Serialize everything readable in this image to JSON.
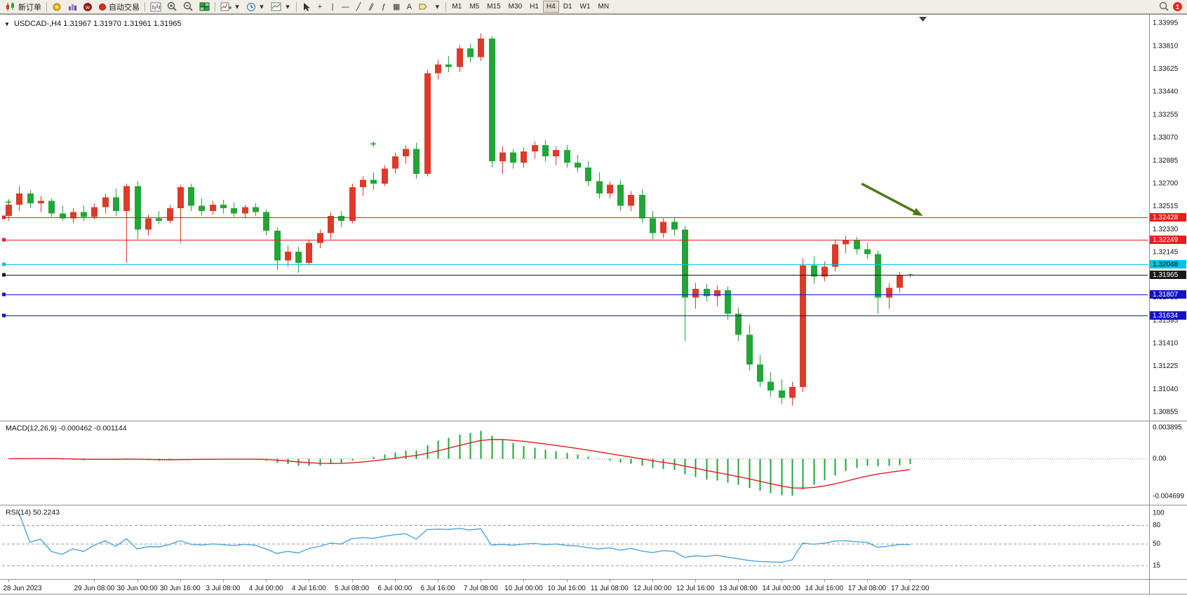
{
  "window": {
    "title_symbol": "USDCAD-,H4",
    "quote": "1.31967 1.31970 1.31961 1.31965"
  },
  "toolbar": {
    "new_order_label": "新订单",
    "autotrading_label": "自动交易",
    "timeframes": [
      "M1",
      "M5",
      "M15",
      "M30",
      "H1",
      "H4",
      "D1",
      "W1",
      "MN"
    ],
    "active_timeframe": "H4",
    "notification_count": "1"
  },
  "icons": {
    "collapse": "▼",
    "crosshair": "+",
    "vline": "|",
    "hline": "—",
    "trendline": "╱",
    "channel": "∥",
    "fibonacci": "ƒ",
    "shapes": "▦",
    "text_tool": "A",
    "arrows_more": "▾",
    "dropdown": "▾"
  },
  "colors": {
    "bull": "#dd3a2a",
    "bear": "#21a637",
    "macd_hist": "#21a637",
    "macd_signal": "#e01e1e",
    "rsi_line": "#4da3e0",
    "axis_text": "#111111",
    "grid_dotted": "#9a9a9a",
    "frame": "#8f8f8f",
    "arrow_object": "#4c7a12",
    "plus_marker": "#27a52a"
  },
  "price_axis": {
    "labels": [
      "1.33995",
      "1.33810",
      "1.33625",
      "1.33440",
      "1.33255",
      "1.33070",
      "1.32885",
      "1.32700",
      "1.32515",
      "1.32330",
      "1.32145",
      "1.31780",
      "1.31595",
      "1.31410",
      "1.31225",
      "1.31040",
      "1.30855"
    ]
  },
  "time_axis": {
    "labels": [
      {
        "index": 0,
        "text": "28 Jun 2023"
      },
      {
        "index": 8,
        "text": "29 Jun 08:00"
      },
      {
        "index": 12,
        "text": "30 Jun 00:00"
      },
      {
        "index": 16,
        "text": "30 Jun 16:00"
      },
      {
        "index": 20,
        "text": "3 Jul 08:00"
      },
      {
        "index": 24,
        "text": "4 Jul 00:00"
      },
      {
        "index": 28,
        "text": "4 Jul 16:00"
      },
      {
        "index": 32,
        "text": "5 Jul 08:00"
      },
      {
        "index": 36,
        "text": "6 Jul 00:00"
      },
      {
        "index": 40,
        "text": "6 Jul 16:00"
      },
      {
        "index": 44,
        "text": "7 Jul 08:00"
      },
      {
        "index": 48,
        "text": "10 Jul 00:00"
      },
      {
        "index": 52,
        "text": "10 Jul 16:00"
      },
      {
        "index": 56,
        "text": "11 Jul 08:00"
      },
      {
        "index": 60,
        "text": "12 Jul 00:00"
      },
      {
        "index": 64,
        "text": "12 Jul 16:00"
      },
      {
        "index": 68,
        "text": "13 Jul 08:00"
      },
      {
        "index": 72,
        "text": "14 Jul 00:00"
      },
      {
        "index": 76,
        "text": "14 Jul 16:00"
      },
      {
        "index": 80,
        "text": "17 Jul 08:00"
      },
      {
        "index": 84,
        "text": "17 Jul 22:00"
      }
    ]
  },
  "objects": {
    "hlines": [
      {
        "price": 1.32428,
        "color": "#ee1c1c",
        "tag": "1.32428",
        "tag_text": "#ffffff"
      },
      {
        "price": 1.32249,
        "color": "#ee1c1c",
        "tag": "1.32249",
        "tag_text": "#ffffff"
      },
      {
        "price": 1.32048,
        "color": "#00c5e4",
        "tag": "1.32048",
        "tag_text": "#000000"
      },
      {
        "price": 1.31807,
        "color": "#1212cc",
        "tag": "1.31807",
        "tag_text": "#ffffff"
      },
      {
        "price": 1.31634,
        "color": "#1212cc",
        "tag": "1.31634",
        "tag_text": "#ffffff"
      }
    ],
    "current_price": {
      "price": 1.31965,
      "tag": "1.31965",
      "line_color": "#1a1a1a",
      "tag_text": "#ffffff"
    },
    "arrow": {
      "from_index": 79.5,
      "from_price": 1.32699,
      "to_index": 85.2,
      "to_price": 1.32439
    },
    "plus_markers": [
      {
        "index": 0,
        "price": 1.3255
      },
      {
        "index": 34,
        "price": 1.3302
      }
    ]
  },
  "chart_data": {
    "type": "candlestick+indicators",
    "symbol": "USDCAD",
    "timeframe": "H4",
    "price_range": [
      1.30855,
      1.33995
    ],
    "candles": [
      [
        1.3244,
        1.3256,
        1.324,
        1.3253
      ],
      [
        1.3253,
        1.3268,
        1.3248,
        1.3262
      ],
      [
        1.3262,
        1.3265,
        1.325,
        1.3254
      ],
      [
        1.3254,
        1.326,
        1.3247,
        1.3256
      ],
      [
        1.3256,
        1.3258,
        1.3243,
        1.3246
      ],
      [
        1.3246,
        1.3252,
        1.324,
        1.3242
      ],
      [
        1.3242,
        1.325,
        1.3238,
        1.3247
      ],
      [
        1.3247,
        1.3252,
        1.324,
        1.3243
      ],
      [
        1.3243,
        1.3254,
        1.3241,
        1.3251
      ],
      [
        1.3251,
        1.3262,
        1.3246,
        1.3259
      ],
      [
        1.3259,
        1.3266,
        1.3244,
        1.3248
      ],
      [
        1.3248,
        1.327,
        1.3206,
        1.3268
      ],
      [
        1.3268,
        1.3272,
        1.3225,
        1.3233
      ],
      [
        1.3233,
        1.3245,
        1.3228,
        1.3242
      ],
      [
        1.3242,
        1.3248,
        1.3237,
        1.324
      ],
      [
        1.324,
        1.3253,
        1.3238,
        1.325
      ],
      [
        1.325,
        1.3269,
        1.3222,
        1.3267
      ],
      [
        1.3267,
        1.327,
        1.3248,
        1.3252
      ],
      [
        1.3252,
        1.3258,
        1.3244,
        1.3248
      ],
      [
        1.3248,
        1.3256,
        1.3245,
        1.3253
      ],
      [
        1.3253,
        1.3257,
        1.3246,
        1.325
      ],
      [
        1.325,
        1.3255,
        1.3243,
        1.3246
      ],
      [
        1.3246,
        1.3253,
        1.3242,
        1.3251
      ],
      [
        1.3251,
        1.3254,
        1.3244,
        1.3247
      ],
      [
        1.3247,
        1.3249,
        1.3228,
        1.3232
      ],
      [
        1.3232,
        1.3235,
        1.32,
        1.3208
      ],
      [
        1.3208,
        1.322,
        1.3203,
        1.3215
      ],
      [
        1.3215,
        1.3219,
        1.3198,
        1.3206
      ],
      [
        1.3206,
        1.3225,
        1.3204,
        1.3222
      ],
      [
        1.3222,
        1.3233,
        1.3218,
        1.323
      ],
      [
        1.323,
        1.3247,
        1.3225,
        1.3244
      ],
      [
        1.3244,
        1.3248,
        1.3235,
        1.324
      ],
      [
        1.324,
        1.327,
        1.3238,
        1.3267
      ],
      [
        1.3267,
        1.3276,
        1.326,
        1.3273
      ],
      [
        1.3273,
        1.3279,
        1.3265,
        1.327
      ],
      [
        1.327,
        1.3285,
        1.3268,
        1.3282
      ],
      [
        1.3282,
        1.3295,
        1.3278,
        1.3292
      ],
      [
        1.3292,
        1.3301,
        1.3286,
        1.3298
      ],
      [
        1.3298,
        1.3303,
        1.3274,
        1.3278
      ],
      [
        1.3278,
        1.3362,
        1.3276,
        1.3359
      ],
      [
        1.3359,
        1.337,
        1.3354,
        1.3366
      ],
      [
        1.3366,
        1.3373,
        1.336,
        1.3364
      ],
      [
        1.3364,
        1.3382,
        1.336,
        1.3379
      ],
      [
        1.3379,
        1.3383,
        1.3368,
        1.3372
      ],
      [
        1.3372,
        1.3391,
        1.3369,
        1.3387
      ],
      [
        1.3387,
        1.3389,
        1.3283,
        1.3288
      ],
      [
        1.3288,
        1.33,
        1.3278,
        1.3295
      ],
      [
        1.3295,
        1.3298,
        1.3282,
        1.3287
      ],
      [
        1.3287,
        1.3299,
        1.3283,
        1.3296
      ],
      [
        1.3296,
        1.3304,
        1.329,
        1.3301
      ],
      [
        1.3301,
        1.3305,
        1.3288,
        1.3292
      ],
      [
        1.3292,
        1.33,
        1.3285,
        1.3297
      ],
      [
        1.3297,
        1.3301,
        1.3283,
        1.3287
      ],
      [
        1.3287,
        1.3293,
        1.3279,
        1.3283
      ],
      [
        1.3283,
        1.3288,
        1.3268,
        1.3272
      ],
      [
        1.3272,
        1.3279,
        1.3258,
        1.3262
      ],
      [
        1.3262,
        1.3272,
        1.3258,
        1.3269
      ],
      [
        1.3269,
        1.3273,
        1.3248,
        1.3252
      ],
      [
        1.3252,
        1.3264,
        1.3248,
        1.3261
      ],
      [
        1.3261,
        1.3265,
        1.3238,
        1.3242
      ],
      [
        1.3242,
        1.3248,
        1.3225,
        1.323
      ],
      [
        1.323,
        1.3242,
        1.3226,
        1.3239
      ],
      [
        1.3239,
        1.3243,
        1.3228,
        1.3233
      ],
      [
        1.3233,
        1.3236,
        1.3143,
        1.3178
      ],
      [
        1.3178,
        1.319,
        1.3169,
        1.3185
      ],
      [
        1.3185,
        1.3189,
        1.3175,
        1.3179
      ],
      [
        1.3179,
        1.3188,
        1.3171,
        1.3184
      ],
      [
        1.3184,
        1.3187,
        1.316,
        1.3165
      ],
      [
        1.3165,
        1.317,
        1.3143,
        1.3148
      ],
      [
        1.3148,
        1.3156,
        1.3119,
        1.3124
      ],
      [
        1.3124,
        1.3132,
        1.3106,
        1.311
      ],
      [
        1.311,
        1.3118,
        1.3098,
        1.3103
      ],
      [
        1.3103,
        1.3112,
        1.3092,
        1.3097
      ],
      [
        1.3097,
        1.311,
        1.3091,
        1.3106
      ],
      [
        1.3106,
        1.321,
        1.3102,
        1.3204
      ],
      [
        1.3204,
        1.3211,
        1.3189,
        1.3195
      ],
      [
        1.3195,
        1.3207,
        1.3191,
        1.3203
      ],
      [
        1.3203,
        1.3225,
        1.3199,
        1.3221
      ],
      [
        1.3221,
        1.3228,
        1.3214,
        1.3224
      ],
      [
        1.3224,
        1.3227,
        1.3213,
        1.3217
      ],
      [
        1.3217,
        1.3222,
        1.3209,
        1.3213
      ],
      [
        1.3213,
        1.3216,
        1.3165,
        1.3178
      ],
      [
        1.3178,
        1.319,
        1.3169,
        1.3186
      ],
      [
        1.3186,
        1.3199,
        1.3182,
        1.3196
      ],
      [
        1.31967,
        1.31975,
        1.3194,
        1.31965
      ]
    ],
    "macd": {
      "label": "MACD(12,26,9) -0.000462 -0.001144",
      "params": [
        12,
        26,
        9
      ],
      "main_value": -0.000462,
      "signal_value": -0.001144,
      "axis_labels": [
        "0.003895",
        "0.00",
        "-0.004699"
      ],
      "axis_values": [
        0.003895,
        0,
        -0.004699
      ]
    },
    "rsi": {
      "label": "RSI(14) 50.2243",
      "period": 14,
      "current_value": 50.2243,
      "levels": [
        80,
        50,
        15
      ],
      "axis_labels": [
        "100",
        "80",
        "50",
        "15"
      ],
      "axis_values": [
        100,
        80,
        50,
        15
      ]
    }
  }
}
